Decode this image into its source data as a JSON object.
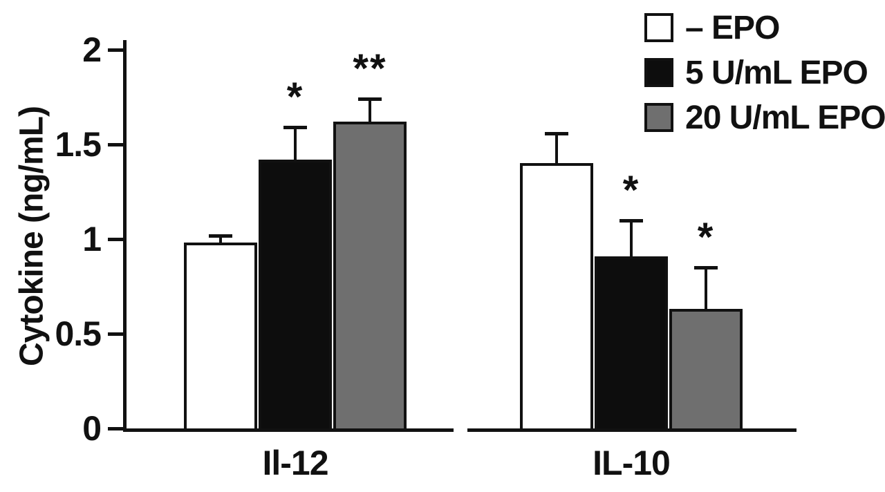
{
  "figure": {
    "background": "#ffffff",
    "axis_color": "#111111"
  },
  "chart_data": {
    "type": "bar",
    "title": "",
    "xlabel": "",
    "ylabel": "Cytokine (ng/mL)",
    "ylim": [
      0,
      2
    ],
    "yticks": [
      0,
      0.5,
      1,
      1.5,
      2
    ],
    "ytick_labels": [
      "0",
      "0.5",
      "1",
      "1.5",
      "2"
    ],
    "categories": [
      "Il-12",
      "IL-10"
    ],
    "series": [
      {
        "name": "– EPO",
        "fill": "#ffffff",
        "values": [
          0.98,
          1.4
        ],
        "errors_up": [
          0.04,
          0.16
        ],
        "significance": [
          "",
          ""
        ]
      },
      {
        "name": "5 U/mL EPO",
        "fill": "#0d0d0d",
        "values": [
          1.42,
          0.91
        ],
        "errors_up": [
          0.17,
          0.19
        ],
        "significance": [
          "*",
          "*"
        ]
      },
      {
        "name": "20 U/mL EPO",
        "fill": "#6f6f6f",
        "values": [
          1.62,
          0.63
        ],
        "errors_up": [
          0.12,
          0.22
        ],
        "significance": [
          "**",
          "*"
        ]
      }
    ],
    "legend_position": "top-right",
    "grid": false,
    "error_bar_style": "upper-cap"
  }
}
